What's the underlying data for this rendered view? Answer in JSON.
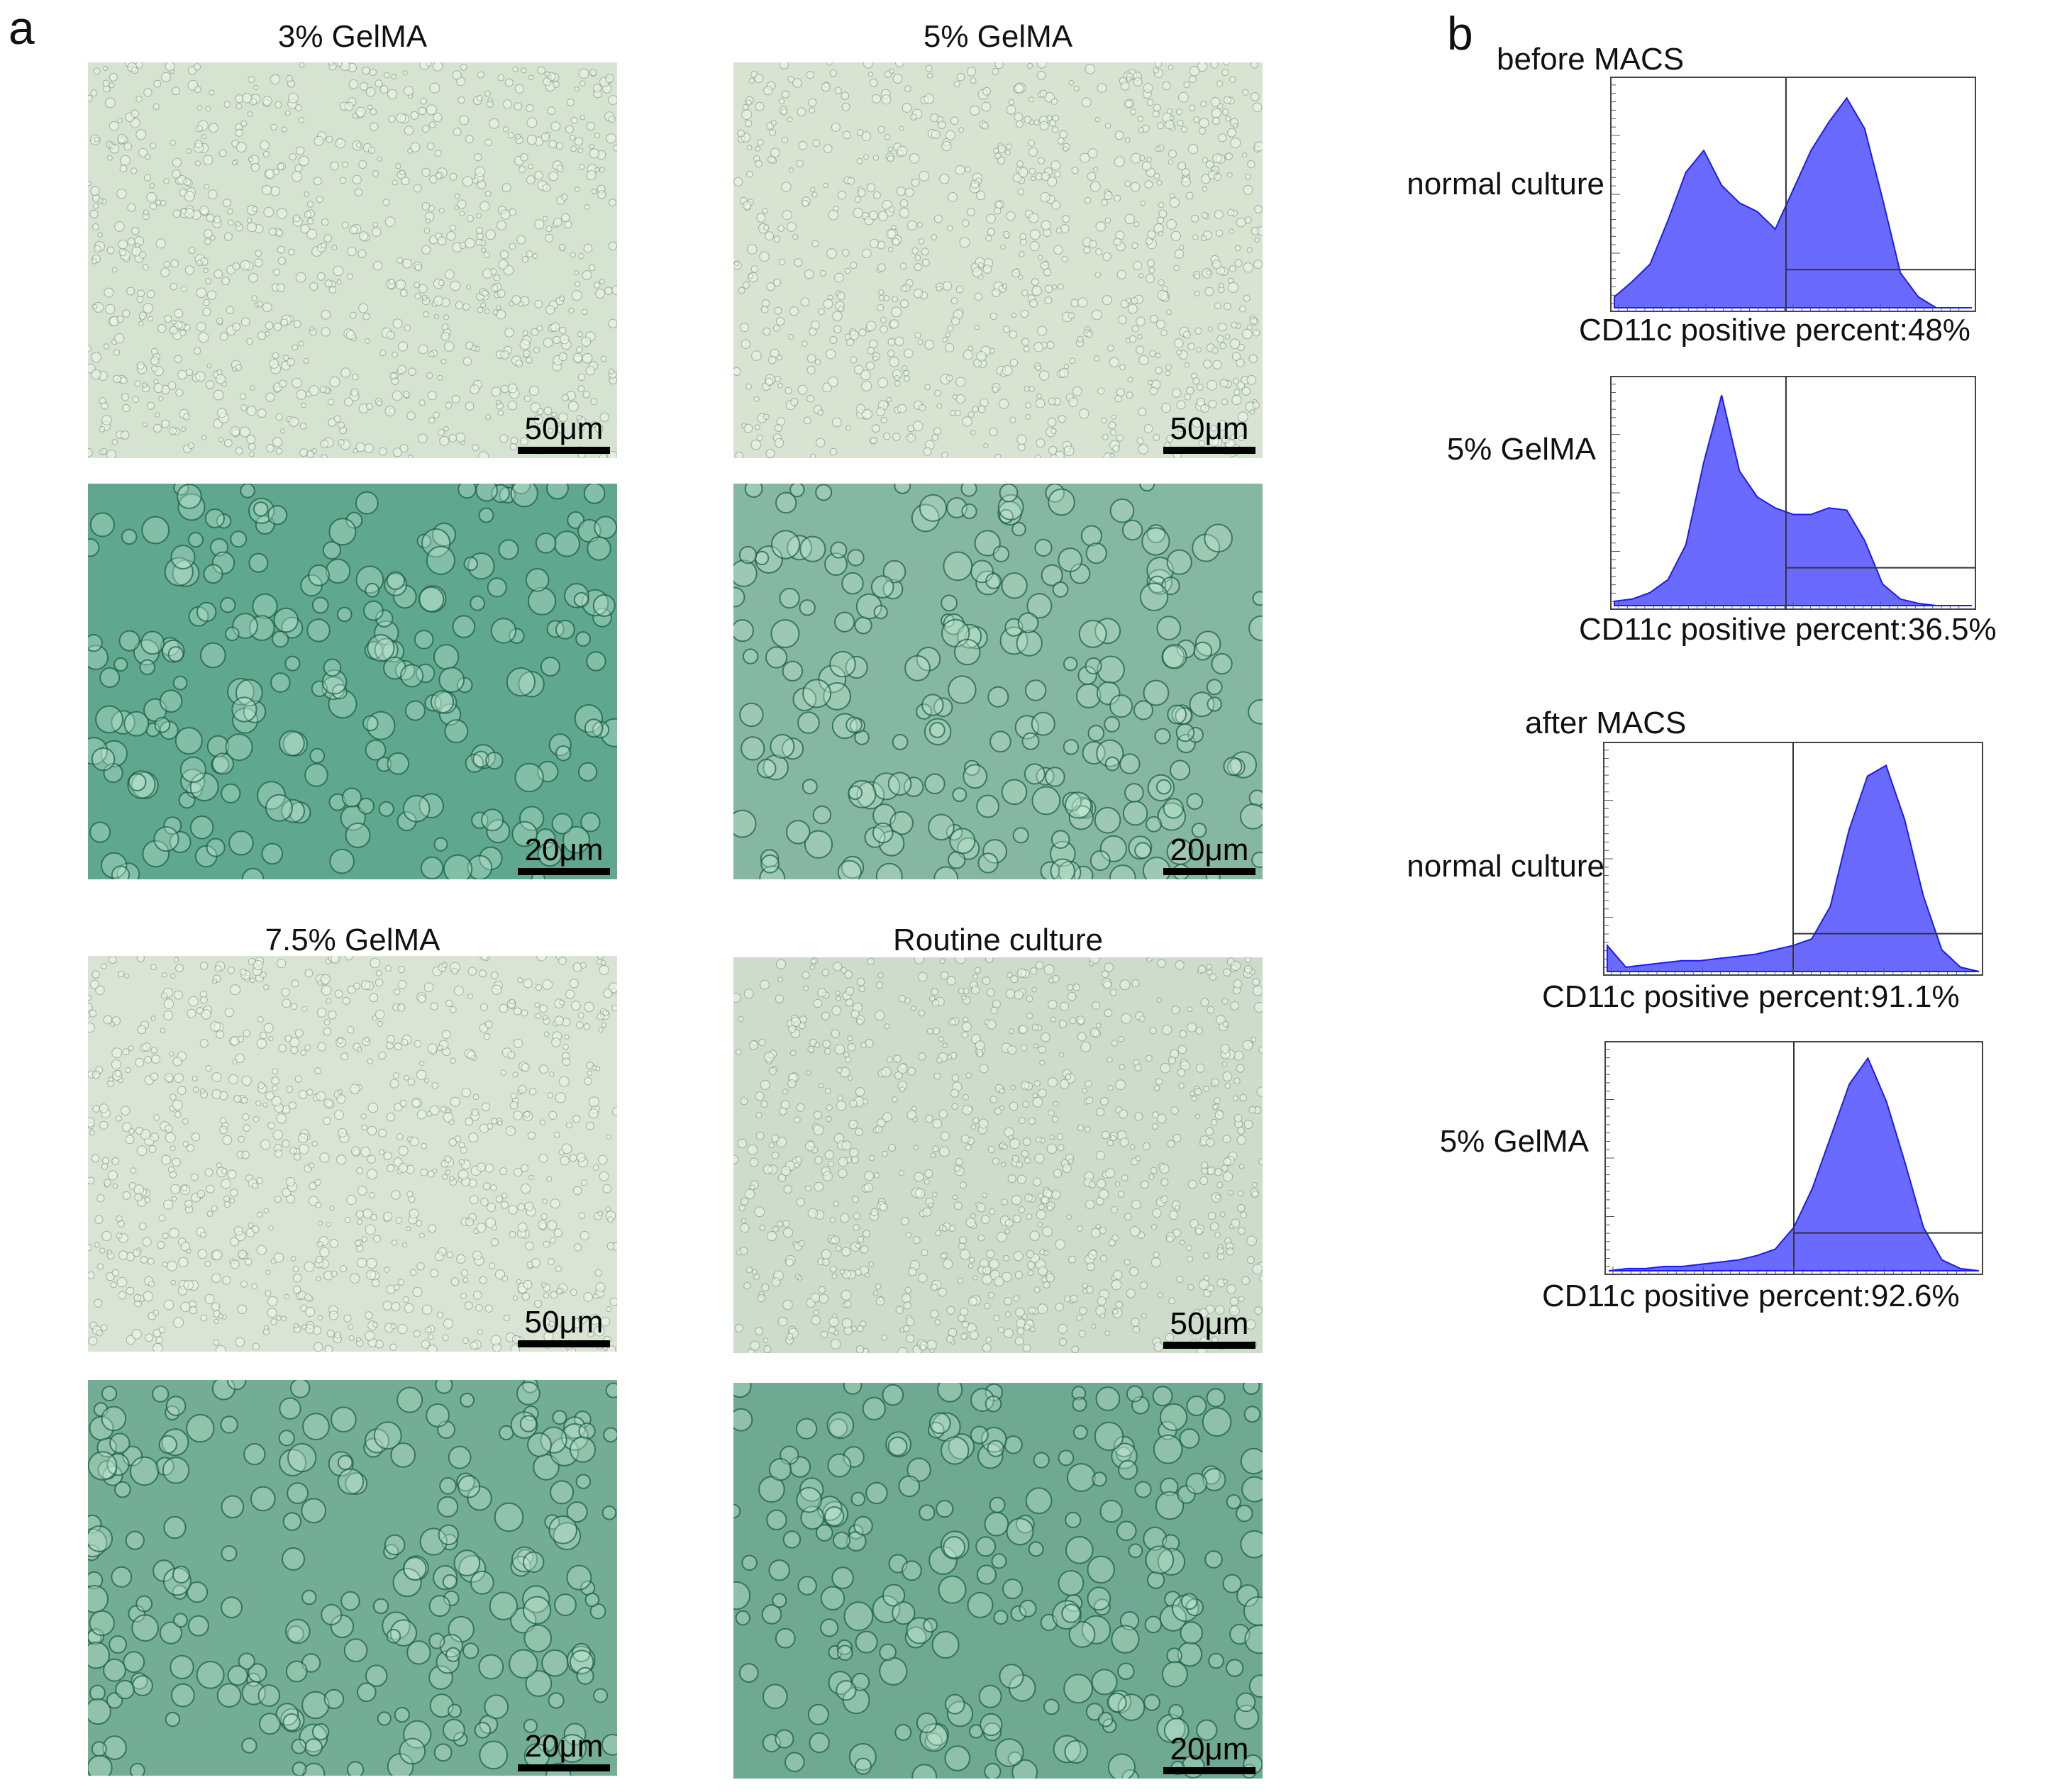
{
  "panel_a": {
    "letter": "a",
    "groups": [
      {
        "title": "3% GelMA",
        "low_scale": "50μm",
        "high_scale": "20μm"
      },
      {
        "title": "5% GelMA",
        "low_scale": "50μm",
        "high_scale": "20μm"
      },
      {
        "title": "7.5% GelMA",
        "low_scale": "50μm",
        "high_scale": "20μm"
      },
      {
        "title": "Routine culture",
        "low_scale": "50μm",
        "high_scale": "20μm"
      }
    ]
  },
  "panel_b": {
    "letter": "b",
    "before_title": "before MACS",
    "after_title": "after MACS",
    "histograms": [
      {
        "row_label": "normal culture",
        "percent_text": "CD11c positive percent:48%"
      },
      {
        "row_label": "5% GelMA",
        "percent_text": "CD11c positive percent:36.5%"
      },
      {
        "row_label": "normal culture",
        "percent_text": "CD11c positive percent:91.1%"
      },
      {
        "row_label": "5% GelMA",
        "percent_text": "CD11c positive percent:92.6%"
      }
    ]
  },
  "chart_data": [
    {
      "type": "area",
      "label": "before MACS – normal culture",
      "fill": "#6a6aff",
      "stroke": "#1a1aff",
      "x": [
        0,
        0.05,
        0.1,
        0.15,
        0.2,
        0.25,
        0.3,
        0.35,
        0.4,
        0.45,
        0.5,
        0.55,
        0.6,
        0.65,
        0.7,
        0.75,
        0.8,
        0.85,
        0.9,
        0.95,
        1.0
      ],
      "values": [
        0.05,
        0.12,
        0.2,
        0.4,
        0.62,
        0.72,
        0.56,
        0.48,
        0.44,
        0.36,
        0.54,
        0.72,
        0.85,
        0.96,
        0.82,
        0.5,
        0.16,
        0.05,
        0,
        0,
        0
      ],
      "gate_x": 0.48,
      "percent": 48
    },
    {
      "type": "area",
      "label": "before MACS – 5% GelMA",
      "fill": "#6a6aff",
      "stroke": "#1a1aff",
      "x": [
        0,
        0.05,
        0.1,
        0.15,
        0.2,
        0.25,
        0.3,
        0.35,
        0.4,
        0.45,
        0.5,
        0.55,
        0.6,
        0.65,
        0.7,
        0.75,
        0.8,
        0.85,
        0.9,
        0.95,
        1.0
      ],
      "values": [
        0.02,
        0.03,
        0.06,
        0.12,
        0.28,
        0.66,
        0.97,
        0.62,
        0.5,
        0.45,
        0.42,
        0.42,
        0.45,
        0.44,
        0.3,
        0.1,
        0.03,
        0.01,
        0,
        0,
        0
      ],
      "gate_x": 0.48,
      "percent": 36.5
    },
    {
      "type": "area",
      "label": "after MACS – normal culture",
      "fill": "#6a6aff",
      "stroke": "#1a1aff",
      "x": [
        0,
        0.05,
        0.1,
        0.15,
        0.2,
        0.25,
        0.3,
        0.35,
        0.4,
        0.45,
        0.5,
        0.55,
        0.6,
        0.65,
        0.7,
        0.75,
        0.8,
        0.85,
        0.9,
        0.95,
        1.0
      ],
      "values": [
        0.12,
        0.02,
        0.03,
        0.04,
        0.05,
        0.05,
        0.06,
        0.07,
        0.08,
        0.1,
        0.12,
        0.15,
        0.3,
        0.65,
        0.9,
        0.95,
        0.7,
        0.35,
        0.1,
        0.02,
        0
      ],
      "gate_x": 0.5,
      "percent": 91.1
    },
    {
      "type": "area",
      "label": "after MACS – 5% GelMA",
      "fill": "#6a6aff",
      "stroke": "#1a1aff",
      "x": [
        0,
        0.05,
        0.1,
        0.15,
        0.2,
        0.25,
        0.3,
        0.35,
        0.4,
        0.45,
        0.5,
        0.55,
        0.6,
        0.65,
        0.7,
        0.75,
        0.8,
        0.85,
        0.9,
        0.95,
        1.0
      ],
      "values": [
        0,
        0.01,
        0.01,
        0.02,
        0.02,
        0.03,
        0.04,
        0.05,
        0.07,
        0.1,
        0.2,
        0.38,
        0.62,
        0.86,
        0.98,
        0.78,
        0.5,
        0.2,
        0.05,
        0.01,
        0
      ],
      "gate_x": 0.5,
      "percent": 92.6
    }
  ]
}
